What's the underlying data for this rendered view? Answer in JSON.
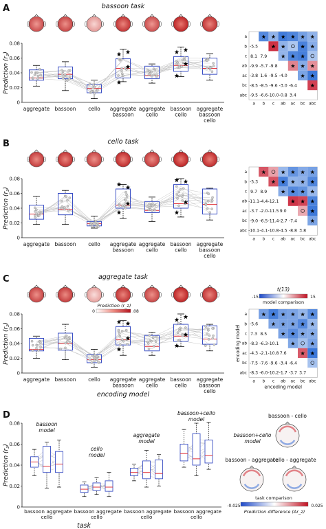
{
  "colors": {
    "box": "#3a4fc4",
    "median": "#e0323a",
    "whisker": "#000000",
    "subject_line": "#b8b8b8",
    "cmap_neg": "#2f6fd6",
    "cmap_pos": "#c8192e",
    "scalp": "#d23b30",
    "star": "#000000"
  },
  "chart_data": [
    {
      "panel": "A",
      "type": "box",
      "title": "bassoon task",
      "ylabel": "Prediction (r_z)",
      "ylim": [
        0,
        0.08
      ],
      "yticks": [
        "0",
        "0.02",
        "0.04",
        "0.06",
        "0.08"
      ],
      "categories": [
        "aggregate",
        "bassoon",
        "cello",
        "aggregate bassoon",
        "aggregate cello",
        "bassoon cello",
        "aggregate bassoon cello"
      ],
      "boxes": [
        {
          "min": 0.022,
          "q1": 0.03,
          "median": 0.033,
          "q3": 0.044,
          "max": 0.05
        },
        {
          "min": 0.016,
          "q1": 0.032,
          "median": 0.038,
          "q3": 0.048,
          "max": 0.055
        },
        {
          "min": 0.005,
          "q1": 0.013,
          "median": 0.019,
          "q3": 0.024,
          "max": 0.03
        },
        {
          "min": 0.028,
          "q1": 0.033,
          "median": 0.046,
          "q3": 0.059,
          "max": 0.072
        },
        {
          "min": 0.026,
          "q1": 0.032,
          "median": 0.036,
          "q3": 0.049,
          "max": 0.052
        },
        {
          "min": 0.035,
          "q1": 0.042,
          "median": 0.05,
          "q3": 0.062,
          "max": 0.075
        },
        {
          "min": 0.03,
          "q1": 0.038,
          "median": 0.046,
          "q3": 0.06,
          "max": 0.066
        }
      ],
      "topomap_intensity": [
        0.75,
        0.8,
        0.3,
        0.9,
        0.75,
        1.0,
        0.9
      ],
      "matrix_labels": [
        "a",
        "b",
        "c",
        "ab",
        "ac",
        "bc",
        "abc"
      ],
      "matrix_lower": [
        [
          "-5.5"
        ],
        [
          "8.1",
          "7.9"
        ],
        [
          "-9.9",
          "-5.7",
          "-9.8"
        ],
        [
          "-3.8",
          "1.6",
          "-9.5",
          "-4.0"
        ],
        [
          "-8.5",
          "-8.5",
          "-9.6",
          "-3.0",
          "-6.4"
        ],
        [
          "-9.5",
          "-6.6",
          "-10.0",
          "-0.8",
          "3.4",
          ""
        ]
      ]
    },
    {
      "panel": "B",
      "type": "box",
      "title": "cello task",
      "ylabel": "Prediction (r_z)",
      "ylim": [
        0,
        0.08
      ],
      "yticks": [
        "0",
        "0.02",
        "0.04",
        "0.06",
        "0.08"
      ],
      "categories": [
        "aggregate",
        "bassoon",
        "cello",
        "aggregate bassoon",
        "aggregate cello",
        "bassoon cello",
        "aggregate bassoon cello"
      ],
      "boxes": [
        {
          "min": 0.018,
          "q1": 0.025,
          "median": 0.032,
          "q3": 0.044,
          "max": 0.056
        },
        {
          "min": 0.018,
          "q1": 0.031,
          "median": 0.038,
          "q3": 0.06,
          "max": 0.064
        },
        {
          "min": 0.013,
          "q1": 0.016,
          "median": 0.019,
          "q3": 0.022,
          "max": 0.029
        },
        {
          "min": 0.026,
          "q1": 0.04,
          "median": 0.044,
          "q3": 0.066,
          "max": 0.072
        },
        {
          "min": 0.022,
          "q1": 0.034,
          "median": 0.037,
          "q3": 0.049,
          "max": 0.055
        },
        {
          "min": 0.028,
          "q1": 0.04,
          "median": 0.046,
          "q3": 0.072,
          "max": 0.08
        },
        {
          "min": 0.024,
          "q1": 0.032,
          "median": 0.045,
          "q3": 0.066,
          "max": 0.067
        }
      ],
      "topomap_intensity": [
        0.85,
        0.9,
        0.8,
        0.95,
        0.85,
        1.0,
        0.95
      ],
      "matrix_labels": [
        "a",
        "b",
        "c",
        "ab",
        "ac",
        "bc",
        "abc"
      ],
      "matrix_lower": [
        [
          "-5.3"
        ],
        [
          "9.7",
          "8.9"
        ],
        [
          "-11.1",
          "-4.4",
          "-12.1"
        ],
        [
          "-3.7",
          "-2.0",
          "-11.5",
          "9.0"
        ],
        [
          "-9.0",
          "-6.5",
          "-11.4",
          "-2.7",
          "-7.4"
        ],
        [
          "-10.1",
          "-4.1",
          "-10.8",
          "-4.5",
          "-8.8",
          "3.8"
        ]
      ]
    },
    {
      "panel": "C",
      "type": "box",
      "title": "aggregate task",
      "ylabel": "Prediction (r_z)",
      "xlabel": "encoding model",
      "ylim": [
        0,
        0.08
      ],
      "yticks": [
        "0",
        "0.02",
        "0.04",
        "0.06",
        "0.08"
      ],
      "categories": [
        "aggregate",
        "bassoon",
        "cello",
        "aggregate bassoon",
        "aggregate cello",
        "bassoon cello",
        "aggregate bassoon cello"
      ],
      "boxes": [
        {
          "min": 0.02,
          "q1": 0.03,
          "median": 0.032,
          "q3": 0.047,
          "max": 0.05
        },
        {
          "min": 0.018,
          "q1": 0.031,
          "median": 0.04,
          "q3": 0.054,
          "max": 0.066
        },
        {
          "min": 0.008,
          "q1": 0.014,
          "median": 0.018,
          "q3": 0.025,
          "max": 0.032
        },
        {
          "min": 0.024,
          "q1": 0.038,
          "median": 0.045,
          "q3": 0.063,
          "max": 0.071
        },
        {
          "min": 0.024,
          "q1": 0.03,
          "median": 0.036,
          "q3": 0.051,
          "max": 0.055
        },
        {
          "min": 0.036,
          "q1": 0.043,
          "median": 0.05,
          "q3": 0.066,
          "max": 0.08
        },
        {
          "min": 0.03,
          "q1": 0.039,
          "median": 0.046,
          "q3": 0.064,
          "max": 0.066
        }
      ],
      "topomap_intensity": [
        0.8,
        0.85,
        0.25,
        0.9,
        0.8,
        1.0,
        0.9
      ],
      "colorbar": {
        "label": "Prediction (r_z)",
        "min": "0",
        "max": ".08"
      },
      "matrix_colorbar": {
        "label": "t(13)",
        "caption": "model comparison",
        "min": "-15",
        "max": "15"
      },
      "matrix_axis_label": "encoding model",
      "matrix_labels": [
        "a",
        "b",
        "c",
        "ab",
        "ac",
        "bc",
        "abc"
      ],
      "matrix_lower": [
        [
          "-5.6"
        ],
        [
          "7.3",
          "8.5"
        ],
        [
          "-8.3",
          "-6.3",
          "-10.1"
        ],
        [
          "-4.3",
          "-2.1",
          "-10.8",
          "7.6"
        ],
        [
          "-7.5",
          "-7.6",
          "-9.6",
          "-3.4",
          "-6.4"
        ],
        [
          "-8.3",
          "-6.0",
          "-10.2",
          "-1.7",
          "-3.7",
          "3.7"
        ]
      ]
    },
    {
      "panel": "D",
      "type": "box",
      "ylabel": "Prediction (r_z)",
      "xlabel": "task",
      "ylim": [
        0,
        0.08
      ],
      "yticks": [
        "0",
        "0.02",
        "0.04",
        "0.06",
        "0.08"
      ],
      "groups": [
        {
          "label": "bassoon model",
          "tasks": [
            "bassoon",
            "cello",
            "aggregate"
          ],
          "boxes": [
            {
              "min": 0.03,
              "q1": 0.038,
              "median": 0.043,
              "q3": 0.048,
              "max": 0.055
            },
            {
              "min": 0.018,
              "q1": 0.033,
              "median": 0.039,
              "q3": 0.058,
              "max": 0.062
            },
            {
              "min": 0.019,
              "q1": 0.033,
              "median": 0.041,
              "q3": 0.053,
              "max": 0.064
            }
          ]
        },
        {
          "label": "cello model",
          "tasks": [
            "bassoon",
            "cello",
            "aggregate"
          ],
          "boxes": [
            {
              "min": 0.01,
              "q1": 0.014,
              "median": 0.017,
              "q3": 0.021,
              "max": 0.024
            },
            {
              "min": 0.012,
              "q1": 0.016,
              "median": 0.019,
              "q3": 0.023,
              "max": 0.028
            },
            {
              "min": 0.01,
              "q1": 0.015,
              "median": 0.019,
              "q3": 0.025,
              "max": 0.033
            }
          ]
        },
        {
          "label": "aggregate model",
          "tasks": [
            "bassoon",
            "cello",
            "aggregate"
          ],
          "boxes": [
            {
              "min": 0.025,
              "q1": 0.03,
              "median": 0.033,
              "q3": 0.037,
              "max": 0.041
            },
            {
              "min": 0.019,
              "q1": 0.027,
              "median": 0.033,
              "q3": 0.044,
              "max": 0.054
            },
            {
              "min": 0.02,
              "q1": 0.027,
              "median": 0.032,
              "q3": 0.045,
              "max": 0.05
            }
          ]
        },
        {
          "label": "bassoon+cello model",
          "tasks": [
            "bassoon",
            "cello",
            "aggregate"
          ],
          "boxes": [
            {
              "min": 0.038,
              "q1": 0.044,
              "median": 0.051,
              "q3": 0.06,
              "max": 0.074
            },
            {
              "min": 0.03,
              "q1": 0.04,
              "median": 0.046,
              "q3": 0.07,
              "max": 0.08
            },
            {
              "min": 0.036,
              "q1": 0.042,
              "median": 0.049,
              "q3": 0.064,
              "max": 0.081
            }
          ]
        }
      ],
      "topo_right": {
        "label_top": "bassoon - cello",
        "model_label": "bassoon+cello model",
        "label_left": "bassoon - aggregate",
        "label_right": "cello - aggregate",
        "caption": "task comparison",
        "cbar_label": "Prediction difference (Δr_z)",
        "cbar_min": "-0.025",
        "cbar_max": "0.025"
      }
    }
  ],
  "d_model_labels": [
    [
      "bassoon",
      "model"
    ],
    [
      "cello",
      "model"
    ],
    [
      "aggregate",
      "model"
    ],
    [
      "bassoon+cello",
      "model"
    ]
  ],
  "d_task_tick_rows": [
    "bassoon",
    "cello",
    "aggregate"
  ]
}
